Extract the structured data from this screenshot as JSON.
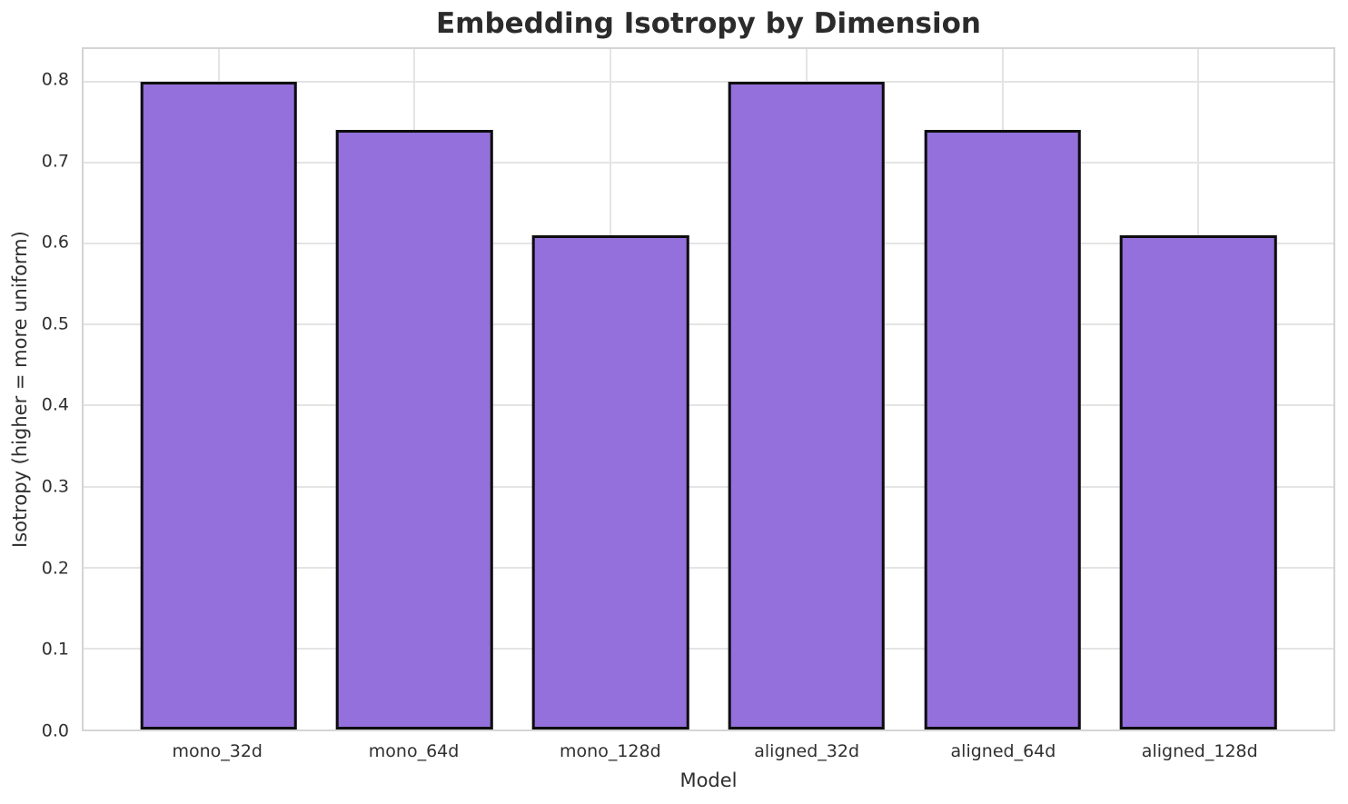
{
  "chart_data": {
    "type": "bar",
    "title": "Embedding Isotropy by Dimension",
    "xlabel": "Model",
    "ylabel": "Isotropy (higher = more uniform)",
    "categories": [
      "mono_32d",
      "mono_64d",
      "mono_128d",
      "aligned_32d",
      "aligned_64d",
      "aligned_128d"
    ],
    "values": [
      0.8,
      0.74,
      0.61,
      0.8,
      0.74,
      0.61
    ],
    "ylim": [
      0,
      0.84
    ],
    "yticks": [
      0.0,
      0.1,
      0.2,
      0.3,
      0.4,
      0.5,
      0.6,
      0.7,
      0.8
    ],
    "ytick_labels": [
      "0.0",
      "0.1",
      "0.2",
      "0.3",
      "0.4",
      "0.5",
      "0.6",
      "0.7",
      "0.8"
    ],
    "grid": true,
    "legend": "none",
    "colors": {
      "bar_fill": "#9370DB",
      "bar_edge": "#0d0d0d",
      "grid": "#e4e4e4",
      "spine": "#d4d4d4",
      "background": "#ffffff",
      "title_text": "#2b2b2b",
      "tick_text": "#303030"
    }
  }
}
